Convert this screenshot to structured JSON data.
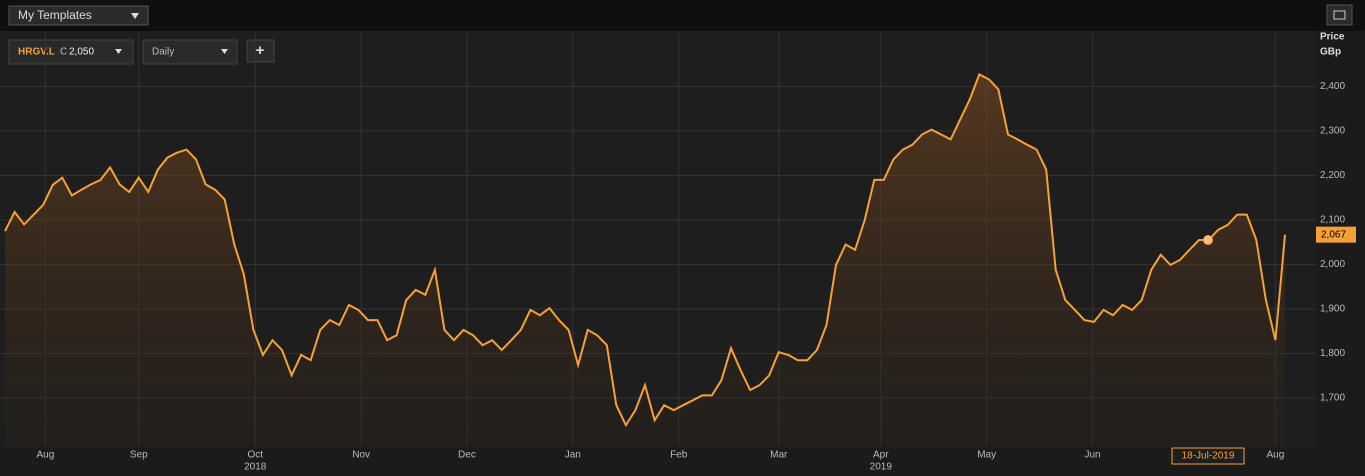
{
  "toolbar": {
    "templates": "My Templates",
    "ticker": "HRGV.L",
    "close_prefix": "C",
    "close_value": "2,050",
    "interval": "Daily",
    "add": "+"
  },
  "chart_data": {
    "type": "line",
    "axis_title": "Price",
    "axis_unit": "GBp",
    "series": [
      {
        "name": "HRGV.L",
        "color": "#f7a035",
        "values": [
          2075,
          2118,
          2090,
          2112,
          2134,
          2179,
          2195,
          2155,
          2168,
          2180,
          2190,
          2218,
          2180,
          2163,
          2195,
          2163,
          2213,
          2240,
          2251,
          2258,
          2236,
          2180,
          2168,
          2146,
          2045,
          1978,
          1853,
          1797,
          1830,
          1808,
          1751,
          1797,
          1785,
          1853,
          1875,
          1864,
          1909,
          1898,
          1875,
          1875,
          1830,
          1841,
          1920,
          1943,
          1932,
          1988,
          1853,
          1830,
          1853,
          1841,
          1819,
          1830,
          1808,
          1830,
          1853,
          1898,
          1886,
          1902,
          1875,
          1853,
          1774,
          1853,
          1841,
          1819,
          1684,
          1639,
          1673,
          1729,
          1650,
          1684,
          1673,
          1684,
          1695,
          1706,
          1706,
          1740,
          1812,
          1763,
          1718,
          1729,
          1751,
          1803,
          1797,
          1785,
          1785,
          1808,
          1864,
          1999,
          2045,
          2033,
          2100,
          2190,
          2190,
          2236,
          2258,
          2269,
          2292,
          2303,
          2292,
          2281,
          2326,
          2371,
          2427,
          2416,
          2393,
          2292,
          2281,
          2269,
          2258,
          2213,
          1988,
          1920,
          1898,
          1875,
          1871,
          1898,
          1886,
          1909,
          1898,
          1920,
          1988,
          2022,
          1999,
          2010,
          2033,
          2055,
          2055,
          2078,
          2089,
          2112,
          2112,
          2055,
          1920,
          1830,
          2067
        ]
      }
    ],
    "last_label": {
      "value": 2067,
      "label": "2,067"
    },
    "crosshair": {
      "x": 125,
      "label": "18-Jul-2019"
    },
    "ylim": [
      1590,
      2520
    ],
    "yticks": [
      {
        "value": 1700,
        "label": "1,700"
      },
      {
        "value": 1800,
        "label": "1,800"
      },
      {
        "value": 1900,
        "label": "1,900"
      },
      {
        "value": 2000,
        "label": "2,000"
      },
      {
        "value": 2100,
        "label": "2,100"
      },
      {
        "value": 2200,
        "label": "2,200"
      },
      {
        "value": 2300,
        "label": "2,300"
      },
      {
        "value": 2400,
        "label": "2,400"
      }
    ],
    "xlim": [
      0,
      133
    ],
    "xticks": [
      {
        "value": 4.2,
        "label": "Aug"
      },
      {
        "value": 13.9,
        "label": "Sep"
      },
      {
        "value": 26,
        "label": "Oct"
      },
      {
        "value": 37,
        "label": "Nov"
      },
      {
        "value": 48,
        "label": "Dec"
      },
      {
        "value": 59,
        "label": "Jan"
      },
      {
        "value": 70,
        "label": "Feb"
      },
      {
        "value": 80.4,
        "label": "Mar"
      },
      {
        "value": 91,
        "label": "Apr"
      },
      {
        "value": 102,
        "label": "May"
      },
      {
        "value": 113,
        "label": "Jun"
      },
      {
        "value": 132,
        "label": "Aug"
      }
    ],
    "year_labels": [
      {
        "value": 26,
        "label": "2018"
      },
      {
        "value": 91,
        "label": "2019"
      }
    ],
    "grid": true
  }
}
